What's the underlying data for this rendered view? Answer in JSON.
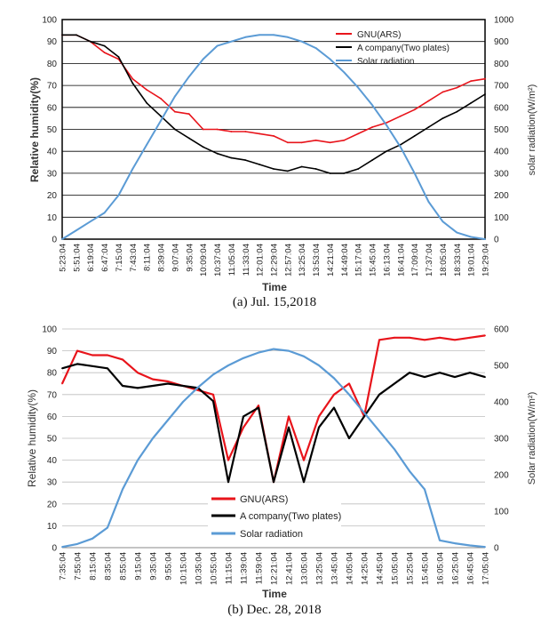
{
  "chart_data": [
    {
      "type": "line",
      "caption": "(a) Jul. 15,2018",
      "xlabel": "Time",
      "ylabel": "Relative humidity(%)",
      "y2label": "solar radiation(W/m²)",
      "ylim": [
        0,
        100
      ],
      "y2lim": [
        0,
        1000
      ],
      "yticks": [
        "0",
        "10",
        "20",
        "30",
        "40",
        "50",
        "60",
        "70",
        "80",
        "90",
        "100"
      ],
      "y2ticks": [
        "0",
        "100",
        "200",
        "300",
        "400",
        "500",
        "600",
        "700",
        "800",
        "900",
        "1000"
      ],
      "grid": true,
      "legend": "top-right",
      "categories": [
        "5:23:04",
        "5:51:04",
        "6:19:04",
        "6:47:04",
        "7:15:04",
        "7:43:04",
        "8:11:04",
        "8:39:04",
        "9:07:04",
        "9:35:04",
        "10:09:04",
        "10:37:04",
        "11:05:04",
        "11:33:04",
        "12:01:04",
        "12:29:04",
        "12:57:04",
        "13:25:04",
        "13:53:04",
        "14:21:04",
        "14:49:04",
        "15:17:04",
        "15:45:04",
        "16:13:04",
        "16:41:04",
        "17:09:04",
        "17:37:04",
        "18:05:04",
        "18:33:04",
        "19:01:04",
        "19:29:04"
      ],
      "series": [
        {
          "name": "GNU(ARS)",
          "color": "#e8141b",
          "axis": "left",
          "values": [
            93,
            93,
            90,
            85,
            82,
            73,
            68,
            64,
            58,
            57,
            50,
            50,
            49,
            49,
            48,
            47,
            44,
            44,
            45,
            44,
            45,
            48,
            51,
            53,
            56,
            59,
            63,
            67,
            69,
            72,
            73
          ]
        },
        {
          "name": "A company(Two plates)",
          "color": "#000000",
          "axis": "left",
          "values": [
            93,
            93,
            90,
            88,
            83,
            71,
            62,
            56,
            50,
            46,
            42,
            39,
            37,
            36,
            34,
            32,
            31,
            33,
            32,
            30,
            30,
            32,
            36,
            40,
            43,
            47,
            51,
            55,
            58,
            62,
            66
          ]
        },
        {
          "name": "Solar radiation",
          "color": "#5b9bd5",
          "axis": "right",
          "values": [
            0,
            40,
            80,
            120,
            200,
            320,
            430,
            540,
            650,
            740,
            820,
            880,
            900,
            920,
            930,
            930,
            920,
            900,
            870,
            820,
            760,
            690,
            610,
            520,
            420,
            300,
            170,
            80,
            30,
            10,
            0
          ]
        }
      ]
    },
    {
      "type": "line",
      "caption": "(b) Dec. 28, 2018",
      "xlabel": "Time",
      "ylabel": "Relative humidity(%)",
      "y2label": "Solar radiation(W/m²)",
      "ylim": [
        0,
        100
      ],
      "y2lim": [
        0,
        600
      ],
      "yticks": [
        "0",
        "10",
        "20",
        "30",
        "40",
        "50",
        "60",
        "70",
        "80",
        "90",
        "100"
      ],
      "y2ticks": [
        "0",
        "100",
        "200",
        "300",
        "400",
        "500",
        "600"
      ],
      "grid": true,
      "legend": "bottom-left",
      "categories": [
        "7:35:04",
        "7:55:04",
        "8:15:04",
        "8:35:04",
        "8:55:04",
        "9:15:04",
        "9:35:04",
        "9:55:04",
        "10:15:04",
        "10:35:04",
        "10:55:04",
        "11:15:04",
        "11:39:04",
        "11:59:04",
        "12:21:04",
        "12:41:04",
        "13:05:04",
        "13:25:04",
        "13:45:04",
        "14:05:04",
        "14:25:04",
        "14:45:04",
        "15:05:04",
        "15:25:04",
        "15:45:04",
        "16:05:04",
        "16:25:04",
        "16:45:04",
        "17:05:04"
      ],
      "series": [
        {
          "name": "GNU(ARS)",
          "color": "#e8141b",
          "axis": "left",
          "values": [
            75,
            90,
            88,
            88,
            86,
            80,
            77,
            76,
            74,
            72,
            70,
            40,
            55,
            65,
            30,
            60,
            40,
            60,
            70,
            75,
            60,
            95,
            96,
            96,
            95,
            96,
            95,
            96,
            97
          ]
        },
        {
          "name": "A company(Two plates)",
          "color": "#000000",
          "axis": "left",
          "values": [
            82,
            84,
            83,
            82,
            74,
            73,
            74,
            75,
            74,
            73,
            67,
            30,
            60,
            64,
            30,
            55,
            30,
            55,
            64,
            50,
            60,
            70,
            75,
            80,
            78,
            80,
            78,
            80,
            78
          ]
        },
        {
          "name": "Solar radiation",
          "color": "#5b9bd5",
          "axis": "right",
          "values": [
            2,
            10,
            25,
            55,
            160,
            240,
            300,
            350,
            400,
            440,
            475,
            500,
            520,
            535,
            545,
            540,
            525,
            500,
            465,
            420,
            370,
            320,
            270,
            210,
            160,
            20,
            12,
            6,
            2
          ]
        }
      ]
    }
  ]
}
